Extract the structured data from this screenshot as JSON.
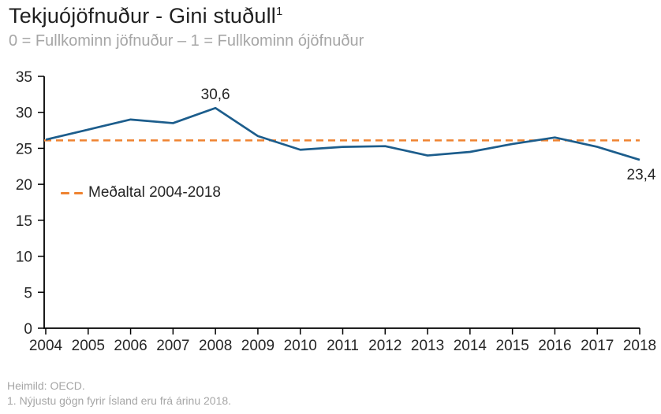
{
  "header": {
    "title": "Tekjuójöfnuður - Gini stuðull",
    "title_superscript": "1",
    "subtitle": "0 = Fullkominn jöfnuður – 1 = Fullkominn ójöfnuður"
  },
  "chart_data": {
    "type": "line",
    "title": "Tekjuójöfnuður - Gini stuðull",
    "subtitle": "0 = Fullkominn jöfnuður – 1 = Fullkominn ójöfnuður",
    "categories": [
      2004,
      2005,
      2006,
      2007,
      2008,
      2009,
      2010,
      2011,
      2012,
      2013,
      2014,
      2015,
      2016,
      2017,
      2018
    ],
    "series": [
      {
        "name": "Gini stuðull",
        "values": [
          26.2,
          27.6,
          29.0,
          28.5,
          30.6,
          26.7,
          24.8,
          25.2,
          25.3,
          24.0,
          24.5,
          25.6,
          26.5,
          25.2,
          23.4
        ]
      }
    ],
    "average_line": {
      "label": "Meðaltal 2004-2018",
      "value": 26.1,
      "style": "dashed"
    },
    "point_labels": [
      {
        "category": 2008,
        "text": "30,6",
        "position": "above"
      },
      {
        "category": 2018,
        "text": "23,4",
        "position": "below"
      }
    ],
    "ylim": [
      0,
      35
    ],
    "y_ticks": [
      0,
      5,
      10,
      15,
      20,
      25,
      30,
      35
    ],
    "grid": false,
    "legend_position": "inside-left",
    "xlabel": "",
    "ylabel": ""
  },
  "colors": {
    "line": "#1C5D8C",
    "average": "#EF8331",
    "axis": "#000000",
    "text": "#262626",
    "muted_text": "#a6a6a6"
  },
  "footer": {
    "source": "Heimild: OECD.",
    "note": "1. Nýjustu gögn fyrir Ísland eru frá árinu 2018."
  }
}
